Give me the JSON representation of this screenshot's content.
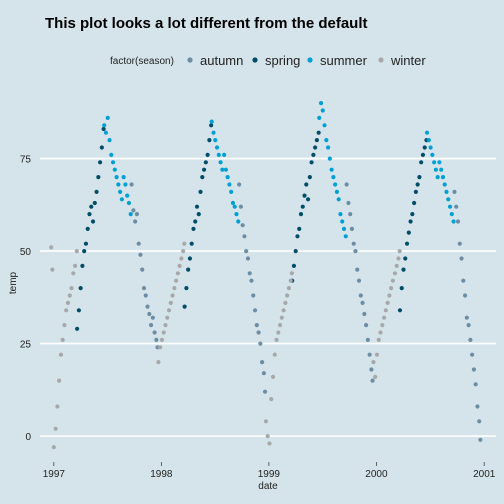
{
  "chart_data": {
    "type": "scatter",
    "title": "This plot looks a lot different from the default",
    "xlabel": "date",
    "ylabel": "temp",
    "legend_title": "factor(season)",
    "legend_position": "top",
    "grid": "horizontal major lines",
    "xlim": [
      "1996-11-15",
      "2001-02-10"
    ],
    "ylim": [
      -7,
      93
    ],
    "x_ticks": [
      "1997",
      "1998",
      "1999",
      "2000",
      "2001"
    ],
    "y_ticks": [
      0,
      25,
      50,
      75
    ],
    "series": [
      {
        "name": "autumn",
        "color": "#6b8ea4",
        "points": [
          [
            "1997-09-22",
            68
          ],
          [
            "1997-09-28",
            61
          ],
          [
            "1997-10-04",
            58
          ],
          [
            "1997-10-10",
            60
          ],
          [
            "1997-10-16",
            52
          ],
          [
            "1997-10-22",
            49
          ],
          [
            "1997-10-28",
            45
          ],
          [
            "1997-11-03",
            40
          ],
          [
            "1997-11-09",
            38
          ],
          [
            "1997-11-15",
            35
          ],
          [
            "1997-11-21",
            33
          ],
          [
            "1997-11-27",
            30
          ],
          [
            "1997-12-03",
            32
          ],
          [
            "1997-12-09",
            28
          ],
          [
            "1997-12-15",
            26
          ],
          [
            "1997-12-19",
            24
          ],
          [
            "1998-09-22",
            68
          ],
          [
            "1998-09-28",
            62
          ],
          [
            "1998-10-04",
            57
          ],
          [
            "1998-10-10",
            54
          ],
          [
            "1998-10-16",
            50
          ],
          [
            "1998-10-22",
            48
          ],
          [
            "1998-10-28",
            44
          ],
          [
            "1998-11-03",
            42
          ],
          [
            "1998-11-09",
            38
          ],
          [
            "1998-11-15",
            34
          ],
          [
            "1998-11-21",
            30
          ],
          [
            "1998-11-27",
            28
          ],
          [
            "1998-12-03",
            25
          ],
          [
            "1998-12-09",
            20
          ],
          [
            "1998-12-15",
            17
          ],
          [
            "1998-12-19",
            12
          ],
          [
            "1999-09-22",
            68
          ],
          [
            "1999-09-28",
            63
          ],
          [
            "1999-10-04",
            60
          ],
          [
            "1999-10-10",
            56
          ],
          [
            "1999-10-16",
            52
          ],
          [
            "1999-10-22",
            50
          ],
          [
            "1999-10-28",
            45
          ],
          [
            "1999-11-03",
            42
          ],
          [
            "1999-11-09",
            38
          ],
          [
            "1999-11-15",
            36
          ],
          [
            "1999-11-21",
            33
          ],
          [
            "1999-11-27",
            30
          ],
          [
            "1999-12-03",
            26
          ],
          [
            "1999-12-09",
            22
          ],
          [
            "1999-12-15",
            18
          ],
          [
            "1999-12-19",
            15
          ],
          [
            "2000-09-22",
            66
          ],
          [
            "2000-09-28",
            62
          ],
          [
            "2000-10-04",
            58
          ],
          [
            "2000-10-10",
            52
          ],
          [
            "2000-10-16",
            48
          ],
          [
            "2000-10-22",
            42
          ],
          [
            "2000-10-28",
            38
          ],
          [
            "2000-11-03",
            32
          ],
          [
            "2000-11-09",
            30
          ],
          [
            "2000-11-15",
            26
          ],
          [
            "2000-11-21",
            22
          ],
          [
            "2000-11-27",
            18
          ],
          [
            "2000-12-03",
            14
          ],
          [
            "2000-12-09",
            8
          ],
          [
            "2000-12-15",
            4
          ],
          [
            "2000-12-19",
            -1
          ]
        ]
      },
      {
        "name": "spring",
        "color": "#024e68",
        "points": [
          [
            "1997-03-21",
            29
          ],
          [
            "1997-03-27",
            34
          ],
          [
            "1997-04-02",
            40
          ],
          [
            "1997-04-08",
            46
          ],
          [
            "1997-04-14",
            50
          ],
          [
            "1997-04-20",
            52
          ],
          [
            "1997-04-26",
            56
          ],
          [
            "1997-05-02",
            60
          ],
          [
            "1997-05-08",
            62
          ],
          [
            "1997-05-14",
            58
          ],
          [
            "1997-05-20",
            63
          ],
          [
            "1997-05-26",
            66
          ],
          [
            "1997-06-01",
            70
          ],
          [
            "1997-06-07",
            74
          ],
          [
            "1997-06-13",
            78
          ],
          [
            "1997-06-19",
            83
          ],
          [
            "1998-03-21",
            35
          ],
          [
            "1998-03-27",
            40
          ],
          [
            "1998-04-02",
            45
          ],
          [
            "1998-04-08",
            48
          ],
          [
            "1998-04-14",
            52
          ],
          [
            "1998-04-20",
            56
          ],
          [
            "1998-04-26",
            58
          ],
          [
            "1998-05-02",
            62
          ],
          [
            "1998-05-08",
            60
          ],
          [
            "1998-05-14",
            66
          ],
          [
            "1998-05-20",
            70
          ],
          [
            "1998-05-26",
            72
          ],
          [
            "1998-06-01",
            74
          ],
          [
            "1998-06-07",
            76
          ],
          [
            "1998-06-13",
            80
          ],
          [
            "1998-06-19",
            84
          ],
          [
            "1999-03-21",
            42
          ],
          [
            "1999-03-27",
            46
          ],
          [
            "1999-04-02",
            50
          ],
          [
            "1999-04-08",
            54
          ],
          [
            "1999-04-14",
            56
          ],
          [
            "1999-04-20",
            60
          ],
          [
            "1999-04-26",
            62
          ],
          [
            "1999-05-02",
            65
          ],
          [
            "1999-05-08",
            68
          ],
          [
            "1999-05-14",
            64
          ],
          [
            "1999-05-20",
            70
          ],
          [
            "1999-05-26",
            74
          ],
          [
            "1999-06-01",
            76
          ],
          [
            "1999-06-07",
            78
          ],
          [
            "1999-06-13",
            80
          ],
          [
            "1999-06-19",
            82
          ],
          [
            "2000-03-21",
            34
          ],
          [
            "2000-03-27",
            40
          ],
          [
            "2000-04-02",
            45
          ],
          [
            "2000-04-08",
            48
          ],
          [
            "2000-04-14",
            52
          ],
          [
            "2000-04-20",
            55
          ],
          [
            "2000-04-26",
            58
          ],
          [
            "2000-05-02",
            60
          ],
          [
            "2000-05-08",
            63
          ],
          [
            "2000-05-14",
            66
          ],
          [
            "2000-05-20",
            68
          ],
          [
            "2000-05-26",
            70
          ],
          [
            "2000-06-01",
            74
          ],
          [
            "2000-06-07",
            76
          ],
          [
            "2000-06-13",
            78
          ],
          [
            "2000-06-19",
            80
          ]
        ]
      },
      {
        "name": "summer",
        "color": "#00a0d2",
        "points": [
          [
            "1997-06-21",
            84
          ],
          [
            "1997-06-27",
            82
          ],
          [
            "1997-07-03",
            86
          ],
          [
            "1997-07-09",
            80
          ],
          [
            "1997-07-15",
            76
          ],
          [
            "1997-07-21",
            74
          ],
          [
            "1997-07-27",
            72
          ],
          [
            "1997-08-02",
            70
          ],
          [
            "1997-08-08",
            68
          ],
          [
            "1997-08-14",
            66
          ],
          [
            "1997-08-20",
            64
          ],
          [
            "1997-08-26",
            70
          ],
          [
            "1997-09-01",
            68
          ],
          [
            "1997-09-07",
            65
          ],
          [
            "1997-09-13",
            63
          ],
          [
            "1997-09-19",
            60
          ],
          [
            "1998-06-21",
            85
          ],
          [
            "1998-06-27",
            82
          ],
          [
            "1998-07-03",
            80
          ],
          [
            "1998-07-09",
            78
          ],
          [
            "1998-07-15",
            76
          ],
          [
            "1998-07-21",
            74
          ],
          [
            "1998-07-27",
            72
          ],
          [
            "1998-08-02",
            76
          ],
          [
            "1998-08-08",
            72
          ],
          [
            "1998-08-14",
            70
          ],
          [
            "1998-08-20",
            68
          ],
          [
            "1998-08-26",
            66
          ],
          [
            "1998-09-01",
            63
          ],
          [
            "1998-09-07",
            62
          ],
          [
            "1998-09-13",
            60
          ],
          [
            "1998-09-19",
            58
          ],
          [
            "1999-06-21",
            86
          ],
          [
            "1999-06-27",
            90
          ],
          [
            "1999-07-03",
            88
          ],
          [
            "1999-07-09",
            84
          ],
          [
            "1999-07-15",
            80
          ],
          [
            "1999-07-21",
            78
          ],
          [
            "1999-07-27",
            75
          ],
          [
            "1999-08-02",
            72
          ],
          [
            "1999-08-08",
            70
          ],
          [
            "1999-08-14",
            68
          ],
          [
            "1999-08-20",
            66
          ],
          [
            "1999-08-26",
            64
          ],
          [
            "1999-09-01",
            60
          ],
          [
            "1999-09-07",
            58
          ],
          [
            "1999-09-13",
            56
          ],
          [
            "1999-09-19",
            54
          ],
          [
            "2000-06-21",
            82
          ],
          [
            "2000-06-27",
            80
          ],
          [
            "2000-07-03",
            78
          ],
          [
            "2000-07-09",
            76
          ],
          [
            "2000-07-15",
            74
          ],
          [
            "2000-07-21",
            72
          ],
          [
            "2000-07-27",
            70
          ],
          [
            "2000-08-02",
            74
          ],
          [
            "2000-08-08",
            72
          ],
          [
            "2000-08-14",
            70
          ],
          [
            "2000-08-20",
            68
          ],
          [
            "2000-08-26",
            66
          ],
          [
            "2000-09-01",
            64
          ],
          [
            "2000-09-07",
            62
          ],
          [
            "2000-09-13",
            60
          ],
          [
            "2000-09-19",
            58
          ]
        ]
      },
      {
        "name": "winter",
        "color": "#a7a8aa",
        "points": [
          [
            "1997-01-01",
            -3
          ],
          [
            "1997-01-07",
            2
          ],
          [
            "1997-01-13",
            8
          ],
          [
            "1997-01-19",
            15
          ],
          [
            "1997-01-25",
            22
          ],
          [
            "1997-01-31",
            26
          ],
          [
            "1997-02-06",
            30
          ],
          [
            "1997-02-12",
            34
          ],
          [
            "1997-02-18",
            36
          ],
          [
            "1997-02-24",
            38
          ],
          [
            "1997-03-02",
            40
          ],
          [
            "1997-03-08",
            44
          ],
          [
            "1997-03-14",
            46
          ],
          [
            "1997-03-20",
            50
          ],
          [
            "1996-12-23",
            51
          ],
          [
            "1996-12-27",
            45
          ],
          [
            "1997-12-22",
            20
          ],
          [
            "1997-12-28",
            24
          ],
          [
            "1998-01-03",
            26
          ],
          [
            "1998-01-09",
            28
          ],
          [
            "1998-01-15",
            30
          ],
          [
            "1998-01-21",
            32
          ],
          [
            "1998-01-27",
            34
          ],
          [
            "1998-02-02",
            36
          ],
          [
            "1998-02-08",
            38
          ],
          [
            "1998-02-14",
            40
          ],
          [
            "1998-02-20",
            42
          ],
          [
            "1998-02-26",
            44
          ],
          [
            "1998-03-04",
            46
          ],
          [
            "1998-03-10",
            48
          ],
          [
            "1998-03-16",
            50
          ],
          [
            "1998-03-20",
            52
          ],
          [
            "1998-12-22",
            4
          ],
          [
            "1998-12-28",
            0
          ],
          [
            "1999-01-03",
            -2
          ],
          [
            "1999-01-09",
            10
          ],
          [
            "1999-01-15",
            16
          ],
          [
            "1999-01-21",
            22
          ],
          [
            "1999-01-27",
            26
          ],
          [
            "1999-02-02",
            28
          ],
          [
            "1999-02-08",
            30
          ],
          [
            "1999-02-14",
            32
          ],
          [
            "1999-02-20",
            34
          ],
          [
            "1999-02-26",
            36
          ],
          [
            "1999-03-04",
            38
          ],
          [
            "1999-03-10",
            40
          ],
          [
            "1999-03-16",
            42
          ],
          [
            "1999-03-20",
            44
          ],
          [
            "1999-12-22",
            20
          ],
          [
            "1999-12-28",
            16
          ],
          [
            "2000-01-03",
            22
          ],
          [
            "2000-01-09",
            26
          ],
          [
            "2000-01-15",
            28
          ],
          [
            "2000-01-21",
            30
          ],
          [
            "2000-01-27",
            32
          ],
          [
            "2000-02-02",
            34
          ],
          [
            "2000-02-08",
            36
          ],
          [
            "2000-02-14",
            38
          ],
          [
            "2000-02-20",
            40
          ],
          [
            "2000-02-26",
            42
          ],
          [
            "2000-03-04",
            44
          ],
          [
            "2000-03-10",
            46
          ],
          [
            "2000-03-16",
            48
          ],
          [
            "2000-03-20",
            50
          ]
        ]
      }
    ]
  }
}
